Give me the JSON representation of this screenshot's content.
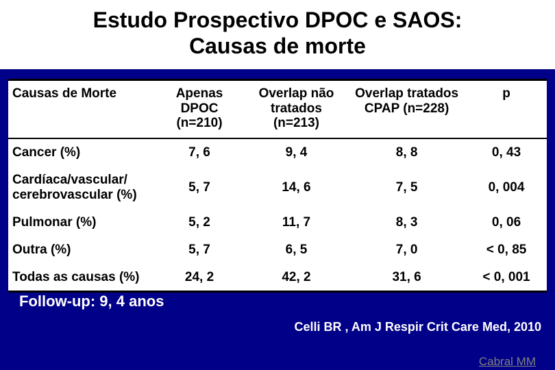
{
  "title_line1": "Estudo Prospectivo DPOC e SAOS:",
  "title_line2": "Causas de morte",
  "table": {
    "type": "table",
    "background_color": "#ffffff",
    "text_color": "#000000",
    "border_color": "#000000",
    "font_size": 19,
    "columns": [
      {
        "label": "Causas de Morte",
        "align": "left"
      },
      {
        "label": "Apenas DPOC\n(n=210)",
        "align": "center"
      },
      {
        "label": "Overlap não tratados (n=213)",
        "align": "center"
      },
      {
        "label": "Overlap tratados CPAP (n=228)",
        "align": "center"
      },
      {
        "label": "p",
        "align": "center"
      }
    ],
    "rows": [
      [
        "Cancer (%)",
        "7, 6",
        "9, 4",
        "8, 8",
        "0, 43"
      ],
      [
        "Cardíaca/vascular/\ncerebrovascular (%)",
        "5, 7",
        "14, 6",
        "7, 5",
        "0, 004"
      ],
      [
        "Pulmonar (%)",
        "5, 2",
        "11, 7",
        "8, 3",
        "0, 06"
      ],
      [
        "Outra (%)",
        "5, 7",
        "6, 5",
        "7, 0",
        "< 0, 85"
      ],
      [
        "Todas as causas (%)",
        "24, 2",
        "42, 2",
        "31, 6",
        "< 0, 001"
      ]
    ]
  },
  "followup": "Follow-up: 9, 4 anos",
  "citation": "Celli BR , Am J Respir Crit Care Med, 2010",
  "author": "Cabral MM",
  "slide_background": "#000088"
}
